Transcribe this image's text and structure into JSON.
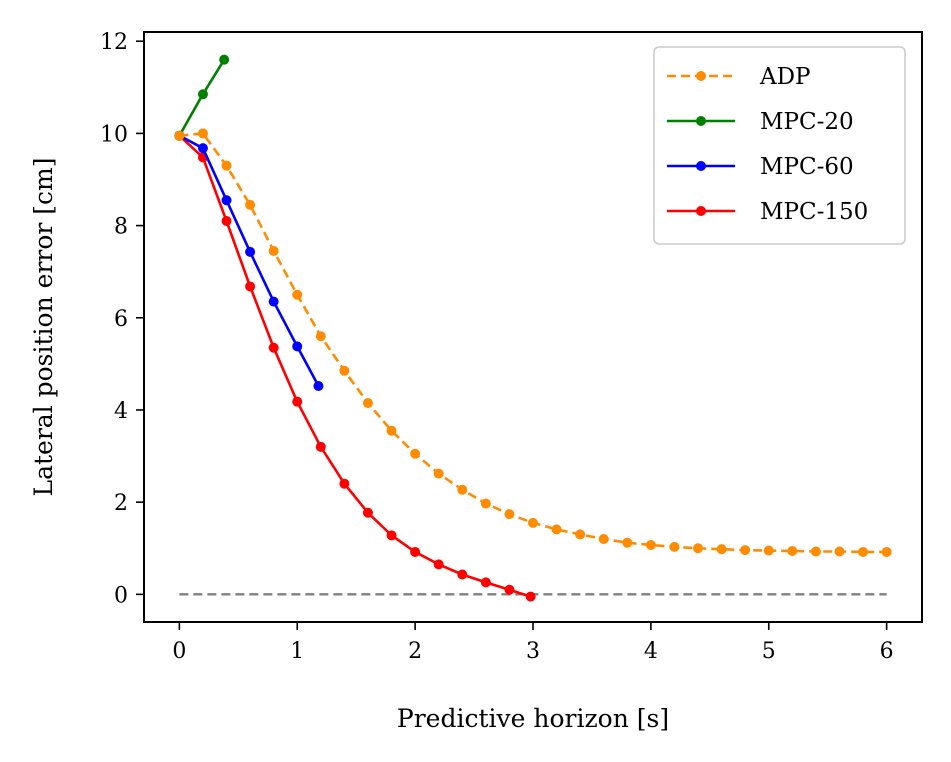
{
  "chart_data": {
    "type": "line",
    "title": "",
    "xlabel": "Predictive horizon [s]",
    "ylabel": "Lateral position error [cm]",
    "xlim": [
      -0.3,
      6.3
    ],
    "ylim": [
      -0.6,
      12.2
    ],
    "xticks": [
      0,
      1,
      2,
      3,
      4,
      5,
      6
    ],
    "yticks": [
      0,
      2,
      4,
      6,
      8,
      10,
      12
    ],
    "xtick_labels": [
      "0",
      "1",
      "2",
      "3",
      "4",
      "5",
      "6"
    ],
    "ytick_labels": [
      "0",
      "2",
      "4",
      "6",
      "8",
      "10",
      "12"
    ],
    "grid": false,
    "legend_position": "top-right",
    "series": [
      {
        "name": "ADP",
        "color": "#ff8c00",
        "dash": "dashed",
        "x": [
          0,
          0.2,
          0.4,
          0.6,
          0.8,
          1.0,
          1.2,
          1.4,
          1.6,
          1.8,
          2.0,
          2.2,
          2.4,
          2.6,
          2.8,
          3.0,
          3.2,
          3.4,
          3.6,
          3.8,
          4.0,
          4.2,
          4.4,
          4.6,
          4.8,
          5.0,
          5.2,
          5.4,
          5.6,
          5.8,
          6.0
        ],
        "y": [
          9.95,
          10.0,
          9.3,
          8.45,
          7.45,
          6.5,
          5.6,
          4.85,
          4.15,
          3.55,
          3.05,
          2.62,
          2.27,
          1.97,
          1.74,
          1.55,
          1.41,
          1.3,
          1.2,
          1.12,
          1.07,
          1.03,
          1.0,
          0.98,
          0.96,
          0.95,
          0.94,
          0.93,
          0.93,
          0.92,
          0.92
        ]
      },
      {
        "name": "MPC-20",
        "color": "#008000",
        "dash": "solid",
        "x": [
          0,
          0.2,
          0.38
        ],
        "y": [
          9.95,
          10.85,
          11.6
        ]
      },
      {
        "name": "MPC-60",
        "color": "#0000ff",
        "dash": "solid",
        "x": [
          0,
          0.2,
          0.4,
          0.6,
          0.8,
          1.0,
          1.18
        ],
        "y": [
          9.95,
          9.68,
          8.55,
          7.43,
          6.35,
          5.38,
          4.52
        ]
      },
      {
        "name": "MPC-150",
        "color": "#ff0000",
        "dash": "solid",
        "x": [
          0,
          0.2,
          0.4,
          0.6,
          0.8,
          1.0,
          1.2,
          1.4,
          1.6,
          1.8,
          2.0,
          2.2,
          2.4,
          2.6,
          2.8,
          2.98
        ],
        "y": [
          9.95,
          9.48,
          8.1,
          6.68,
          5.35,
          4.18,
          3.2,
          2.4,
          1.77,
          1.28,
          0.92,
          0.65,
          0.43,
          0.26,
          0.1,
          -0.05
        ]
      }
    ],
    "reference_line": {
      "y": 0,
      "x_range": [
        0,
        6
      ],
      "color": "#808080",
      "dash": "dashed"
    }
  }
}
